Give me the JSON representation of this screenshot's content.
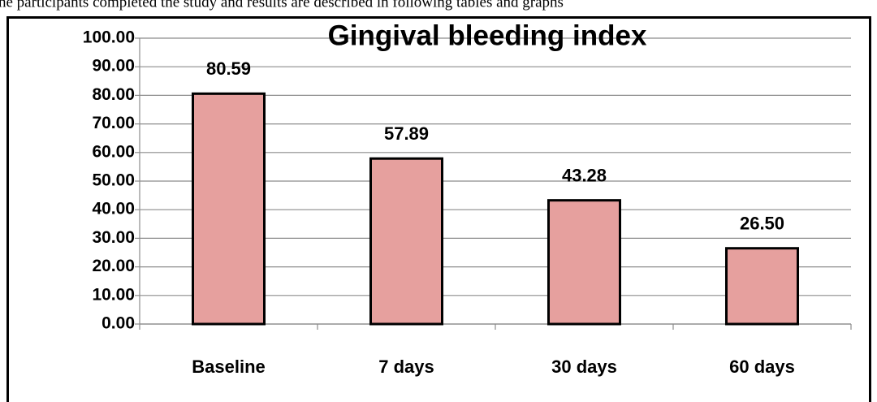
{
  "text_above": "he participants completed the study and results are described in following tables and graphs",
  "chart_data": {
    "type": "bar",
    "title": "Gingival  bleeding index",
    "categories": [
      "Baseline",
      "7 days",
      "30 days",
      "60 days"
    ],
    "values": [
      80.59,
      57.89,
      43.28,
      26.5
    ],
    "value_labels": [
      "80.59",
      "57.89",
      "43.28",
      "26.50"
    ],
    "color": "#e6a09e",
    "ylim": [
      0,
      100
    ],
    "yticks": [
      {
        "value": 0,
        "label": "0.00"
      },
      {
        "value": 10,
        "label": "10.00"
      },
      {
        "value": 20,
        "label": "20.00"
      },
      {
        "value": 30,
        "label": "30.00"
      },
      {
        "value": 40,
        "label": "40.00"
      },
      {
        "value": 50,
        "label": "50.00"
      },
      {
        "value": 60,
        "label": "60.00"
      },
      {
        "value": 70,
        "label": "70.00"
      },
      {
        "value": 80,
        "label": "80.00"
      },
      {
        "value": 90,
        "label": "90.00"
      },
      {
        "value": 100,
        "label": "100.00"
      }
    ],
    "grid": true
  }
}
